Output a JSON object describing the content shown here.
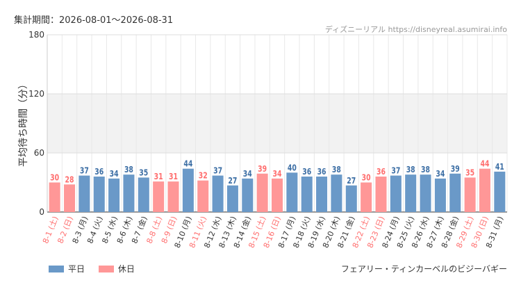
{
  "period": "集計期間：2026-08-01～2026-08-31",
  "credit": "ディズニーリアル https://disneyreal.asumirai.info",
  "ride": "フェアリー・ティンカーベルのビジーバギー",
  "colors": {
    "weekday": "#6a99c8",
    "holiday": "#ff9797",
    "weekday_text": "#3d6fa5",
    "holiday_text": "#ff6e6e",
    "band": "#f2f2f2",
    "grid": "#e8e8e8"
  },
  "chart_data": {
    "type": "bar",
    "ylabel": "平均待ち時間（分）",
    "ylim": [
      0,
      180
    ],
    "yticks": [
      0,
      60,
      120,
      180
    ],
    "band": [
      60,
      120
    ],
    "legend": [
      {
        "name": "平日",
        "key": "weekday"
      },
      {
        "name": "休日",
        "key": "holiday"
      }
    ],
    "categories": [
      "8-1 (土)",
      "8-2 (日)",
      "8-3 (月)",
      "8-4 (火)",
      "8-5 (水)",
      "8-6 (木)",
      "8-7 (金)",
      "8-8 (土)",
      "8-9 (日)",
      "8-10 (月)",
      "8-11 (火)",
      "8-12 (水)",
      "8-13 (木)",
      "8-14 (金)",
      "8-15 (土)",
      "8-16 (日)",
      "8-17 (月)",
      "8-18 (火)",
      "8-19 (水)",
      "8-20 (木)",
      "8-21 (金)",
      "8-22 (土)",
      "8-23 (日)",
      "8-24 (月)",
      "8-25 (火)",
      "8-26 (水)",
      "8-27 (木)",
      "8-28 (金)",
      "8-29 (土)",
      "8-30 (日)",
      "8-31 (月)"
    ],
    "values": [
      30,
      28,
      37,
      36,
      34,
      38,
      35,
      31,
      31,
      44,
      32,
      37,
      27,
      34,
      39,
      34,
      40,
      36,
      36,
      38,
      27,
      30,
      36,
      37,
      38,
      38,
      34,
      39,
      35,
      44,
      41
    ],
    "day_type": [
      "holiday",
      "holiday",
      "weekday",
      "weekday",
      "weekday",
      "weekday",
      "weekday",
      "holiday",
      "holiday",
      "weekday",
      "holiday",
      "weekday",
      "weekday",
      "weekday",
      "holiday",
      "holiday",
      "weekday",
      "weekday",
      "weekday",
      "weekday",
      "weekday",
      "holiday",
      "holiday",
      "weekday",
      "weekday",
      "weekday",
      "weekday",
      "weekday",
      "holiday",
      "holiday",
      "weekday"
    ]
  }
}
